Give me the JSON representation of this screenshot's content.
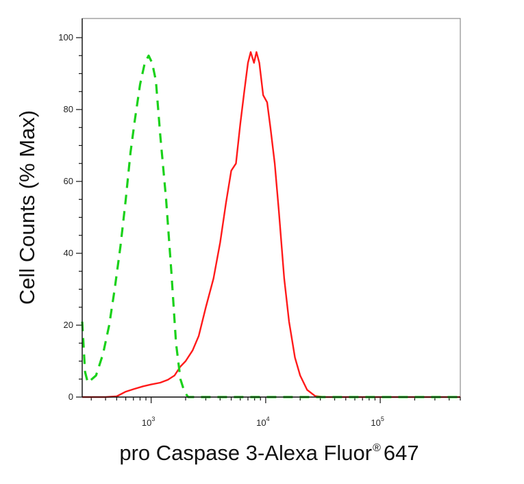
{
  "chart_data": {
    "type": "line",
    "title": "",
    "xlabel": "pro Caspase 3-Alexa Fluor",
    "xlabel_mark": "®",
    "xlabel_suffix": "647",
    "ylabel": "Cell Counts (% Max)",
    "xscale": "log",
    "xlim": [
      250,
      500000
    ],
    "ylim": [
      0,
      100
    ],
    "grid": false,
    "legend": "none",
    "y_ticks": [
      {
        "value": 0,
        "label": "0"
      },
      {
        "value": 20,
        "label": "20"
      },
      {
        "value": 40,
        "label": "40"
      },
      {
        "value": 60,
        "label": "60"
      },
      {
        "value": 80,
        "label": "80"
      },
      {
        "value": 100,
        "label": "100"
      }
    ],
    "x_ticks": [
      {
        "value": 1000,
        "base": "10",
        "exp": "3"
      },
      {
        "value": 10000,
        "base": "10",
        "exp": "4"
      },
      {
        "value": 100000,
        "base": "10",
        "exp": "5"
      }
    ],
    "series": [
      {
        "color": "#ff1a1a",
        "style": "solid",
        "points": [
          [
            250,
            0
          ],
          [
            400,
            0
          ],
          [
            500,
            0.2
          ],
          [
            600,
            1.5
          ],
          [
            700,
            2.2
          ],
          [
            850,
            3
          ],
          [
            1000,
            3.5
          ],
          [
            1200,
            4
          ],
          [
            1400,
            4.8
          ],
          [
            1600,
            6
          ],
          [
            1800,
            8.5
          ],
          [
            2000,
            10
          ],
          [
            2300,
            13
          ],
          [
            2600,
            17
          ],
          [
            3000,
            25
          ],
          [
            3500,
            33
          ],
          [
            4000,
            43
          ],
          [
            4500,
            54
          ],
          [
            5000,
            63
          ],
          [
            5500,
            65
          ],
          [
            6000,
            76
          ],
          [
            6500,
            85
          ],
          [
            7000,
            93
          ],
          [
            7400,
            96
          ],
          [
            7900,
            93
          ],
          [
            8300,
            96
          ],
          [
            8800,
            93
          ],
          [
            9500,
            84
          ],
          [
            10300,
            82
          ],
          [
            11000,
            75
          ],
          [
            12000,
            65
          ],
          [
            13000,
            52
          ],
          [
            14500,
            33
          ],
          [
            16000,
            21
          ],
          [
            18000,
            11
          ],
          [
            20000,
            6
          ],
          [
            23000,
            2
          ],
          [
            27000,
            0.3
          ],
          [
            32000,
            0
          ],
          [
            50000,
            0
          ],
          [
            500000,
            0
          ]
        ]
      },
      {
        "color": "#1ad11a",
        "style": "dashed",
        "points": [
          [
            250,
            21
          ],
          [
            265,
            7
          ],
          [
            280,
            4
          ],
          [
            330,
            6
          ],
          [
            380,
            12
          ],
          [
            430,
            20
          ],
          [
            480,
            30
          ],
          [
            540,
            42
          ],
          [
            600,
            55
          ],
          [
            660,
            68
          ],
          [
            720,
            77
          ],
          [
            800,
            87
          ],
          [
            880,
            93
          ],
          [
            950,
            95
          ],
          [
            1020,
            93
          ],
          [
            1100,
            88
          ],
          [
            1200,
            73
          ],
          [
            1350,
            55
          ],
          [
            1500,
            35
          ],
          [
            1650,
            15
          ],
          [
            1800,
            5
          ],
          [
            1950,
            1.5
          ],
          [
            2100,
            0
          ],
          [
            3000,
            0
          ],
          [
            4000,
            0
          ],
          [
            500000,
            0
          ]
        ]
      }
    ]
  }
}
